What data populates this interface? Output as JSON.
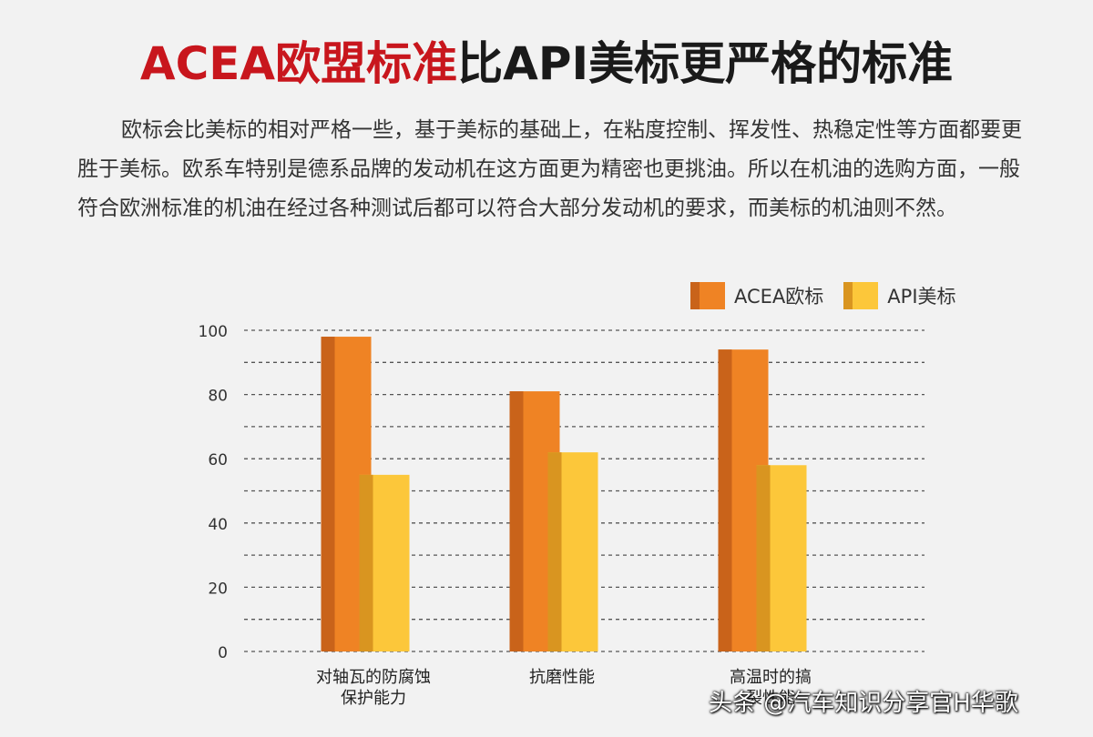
{
  "title": {
    "part1": "ACEA欧盟标准",
    "part2": "比API美标更严格的标准"
  },
  "paragraph": "欧标会比美标的相对严格一些，基于美标的基础上，在粘度控制、挥发性、热稳定性等方面都要更胜于美标。欧系车特别是德系品牌的发动机在这方面更为精密也更挑油。所以在机油的选购方面，一般符合欧洲标准的机油在经过各种测试后都可以符合大部分发动机的要求，而美标的机油则不然。",
  "legend": {
    "acea": "ACEA欧标",
    "api": "API美标"
  },
  "colors": {
    "acea": "#ef8324",
    "acea_dark": "#c9631a",
    "api": "#fcc73a",
    "api_dark": "#d99520",
    "title_red": "#c8161d",
    "grid": "#555555"
  },
  "chart_data": {
    "type": "bar",
    "categories": [
      "对轴瓦的防腐蚀\n保护能力",
      "抗磨性能",
      "高温时的搞\n裂性能"
    ],
    "series": [
      {
        "name": "ACEA欧标",
        "values": [
          98,
          81,
          94
        ]
      },
      {
        "name": "API美标",
        "values": [
          55,
          62,
          58
        ]
      }
    ],
    "yticks": [
      "0",
      "20",
      "40",
      "60",
      "80",
      "100"
    ],
    "ylim": [
      0,
      100
    ],
    "grid": true,
    "legend_position": "top-right"
  },
  "watermark": "头条 @汽车知识分享官H华歌"
}
